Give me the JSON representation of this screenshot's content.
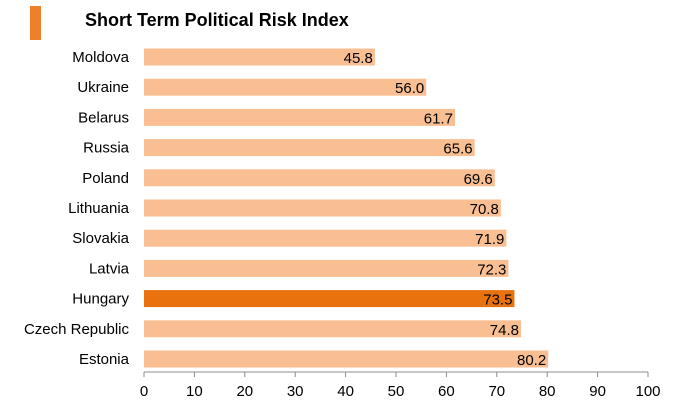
{
  "chart_data": {
    "type": "bar",
    "orientation": "horizontal",
    "title": "Short Term Political Risk Index",
    "categories": [
      "Moldova",
      "Ukraine",
      "Belarus",
      "Russia",
      "Poland",
      "Lithuania",
      "Slovakia",
      "Latvia",
      "Hungary",
      "Czech Republic",
      "Estonia"
    ],
    "values": [
      45.8,
      56.0,
      61.7,
      65.6,
      69.6,
      70.8,
      71.9,
      72.3,
      73.5,
      74.8,
      80.2
    ],
    "value_labels": [
      "45.8",
      "56.0",
      "61.7",
      "65.6",
      "69.6",
      "70.8",
      "71.9",
      "72.3",
      "73.5",
      "74.8",
      "80.2"
    ],
    "highlight": "Hungary",
    "xlim": [
      0,
      100
    ],
    "xticks": [
      0,
      10,
      20,
      30,
      40,
      50,
      60,
      70,
      80,
      90,
      100
    ],
    "xlabel": "",
    "ylabel": "",
    "grid": false,
    "colors": {
      "bar": "#f9be91",
      "highlight": "#e8730e",
      "accent": "#f07f2a",
      "axis": "#8c8c8c"
    }
  }
}
